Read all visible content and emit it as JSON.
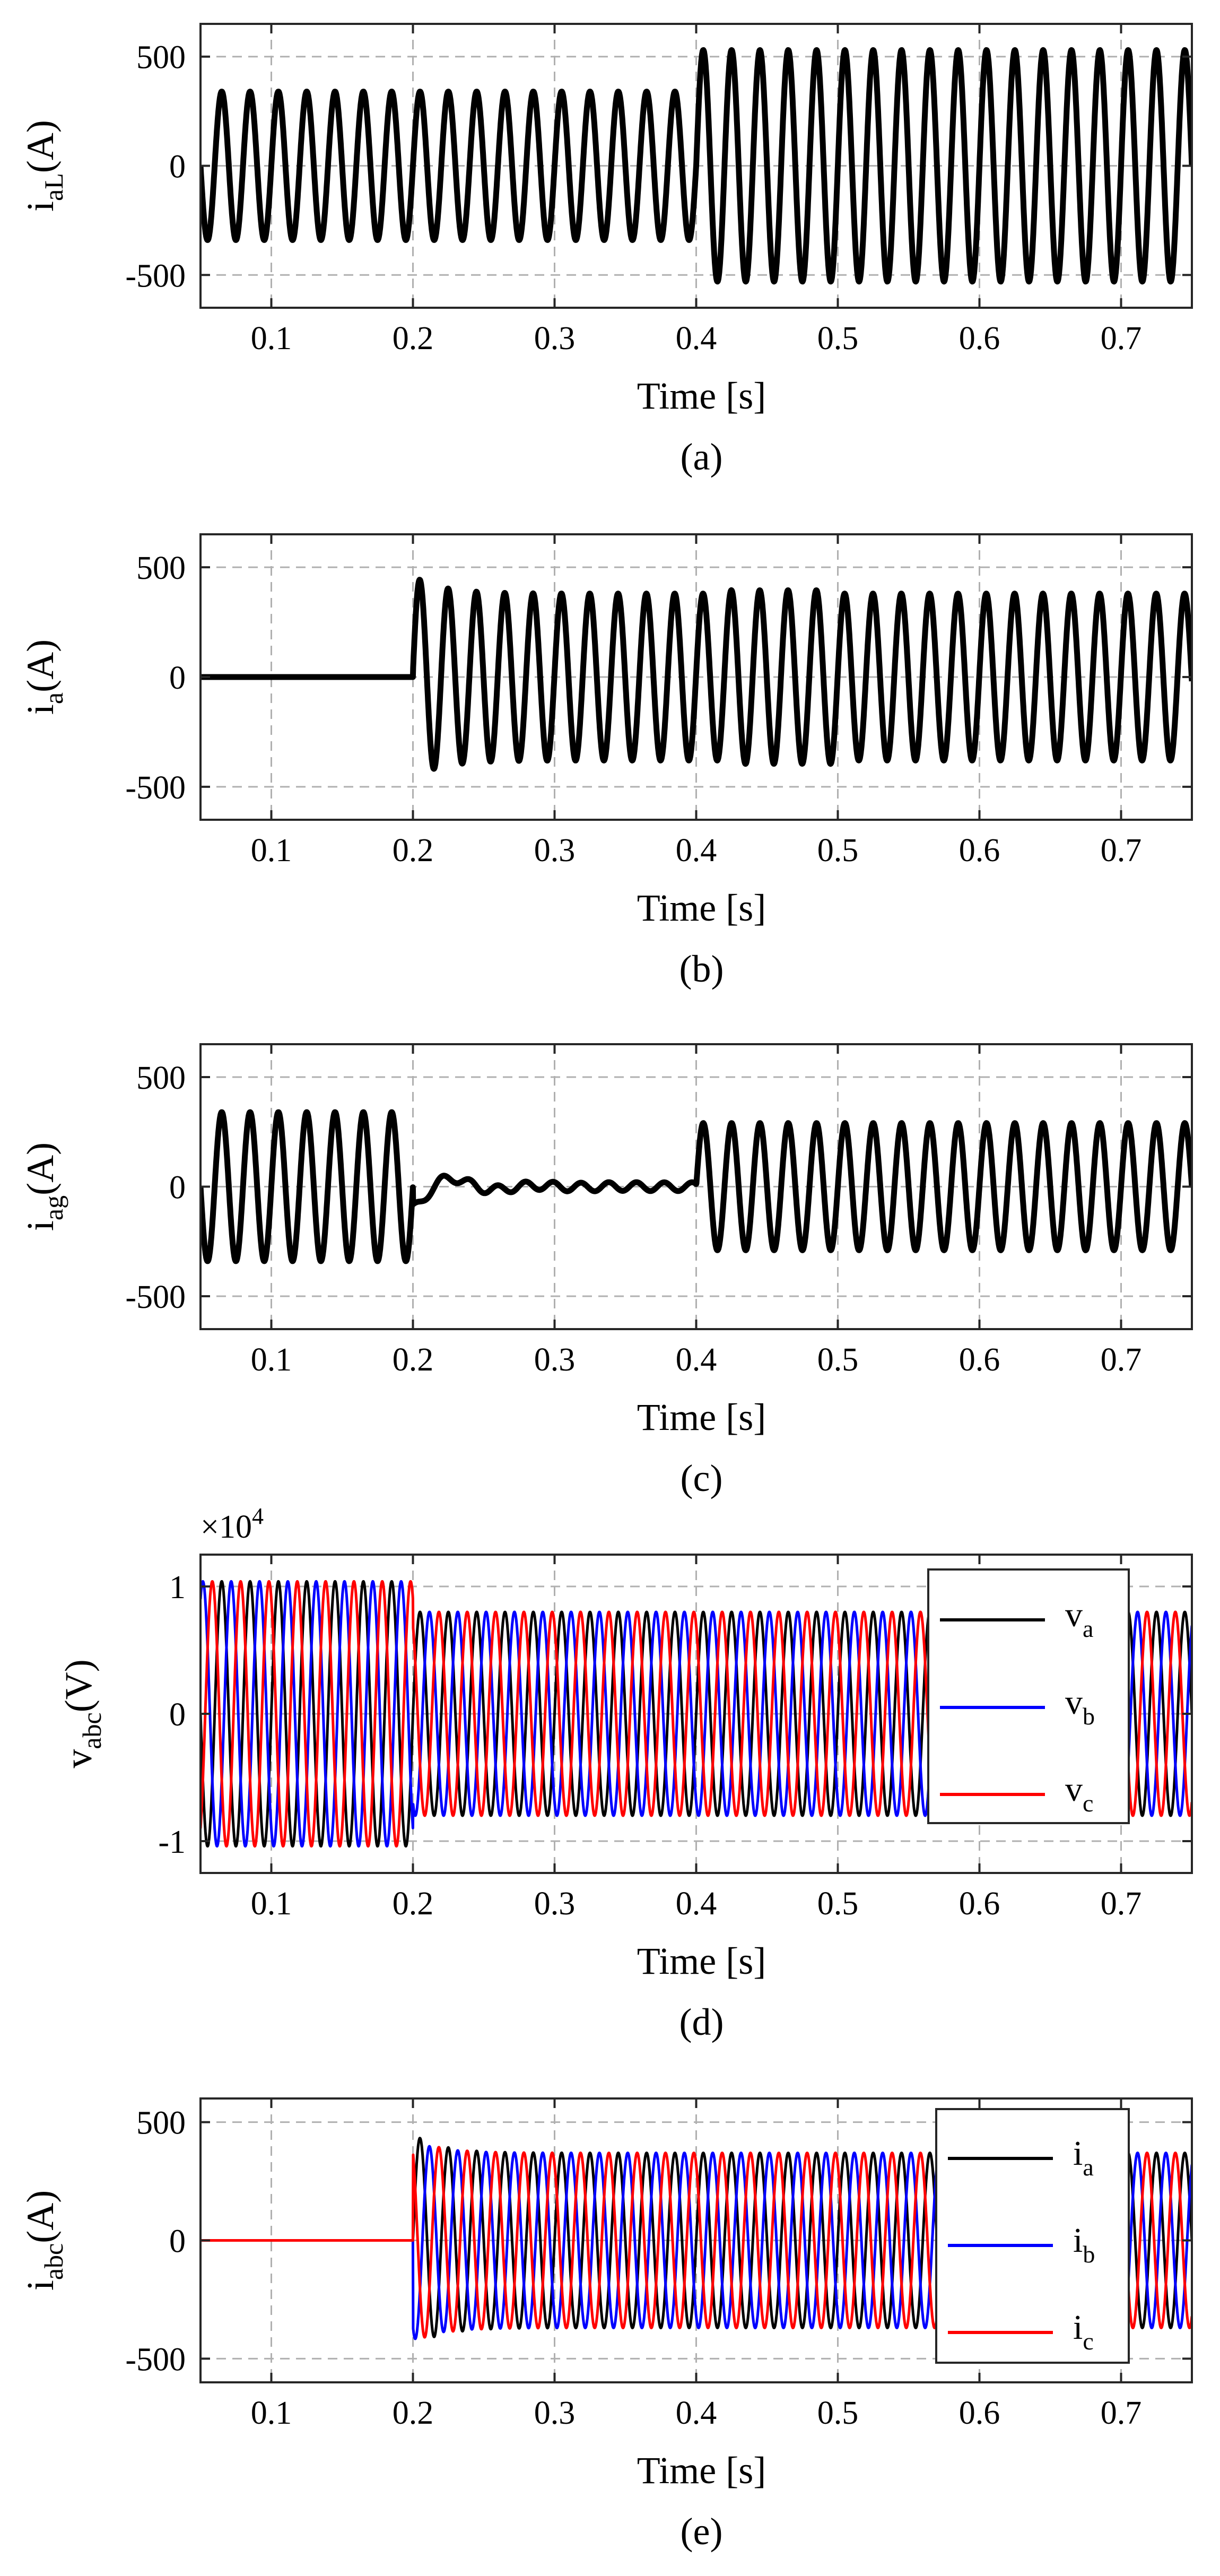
{
  "chart_data": [
    {
      "id": "a",
      "type": "line",
      "caption": "(a)",
      "xlabel": "Time [s]",
      "ylabel": {
        "main": "i",
        "sub": "aL",
        "unit": "(A)"
      },
      "xlim": [
        0.05,
        0.75
      ],
      "ylim": [
        -650,
        650
      ],
      "xticks": [
        "0.1",
        "0.2",
        "0.3",
        "0.4",
        "0.5",
        "0.6",
        "0.7"
      ],
      "xtick_values": [
        0.1,
        0.2,
        0.3,
        0.4,
        0.5,
        0.6,
        0.7
      ],
      "yticks": [
        "500",
        "0",
        "-500"
      ],
      "ytick_values": [
        500,
        0,
        -500
      ],
      "grid": true,
      "series": [
        {
          "name": "i_aL",
          "color": "#000000",
          "frequency_hz": 50,
          "segments": [
            {
              "t": [
                0.05,
                0.4
              ],
              "amplitude": 340
            },
            {
              "t": [
                0.4,
                0.75
              ],
              "amplitude": 530
            }
          ]
        }
      ]
    },
    {
      "id": "b",
      "type": "line",
      "caption": "(b)",
      "xlabel": "Time [s]",
      "ylabel": {
        "main": "i",
        "sub": "a",
        "unit": "(A)"
      },
      "xlim": [
        0.05,
        0.75
      ],
      "ylim": [
        -650,
        650
      ],
      "xticks": [
        "0.1",
        "0.2",
        "0.3",
        "0.4",
        "0.5",
        "0.6",
        "0.7"
      ],
      "xtick_values": [
        0.1,
        0.2,
        0.3,
        0.4,
        0.5,
        0.6,
        0.7
      ],
      "yticks": [
        "500",
        "0",
        "-500"
      ],
      "ytick_values": [
        500,
        0,
        -500
      ],
      "grid": true,
      "series": [
        {
          "name": "i_a",
          "color": "#000000",
          "frequency_hz": 50,
          "segments": [
            {
              "t": [
                0.05,
                0.2
              ],
              "amplitude": 0
            },
            {
              "t": [
                0.2,
                0.75
              ],
              "amplitude": 380,
              "peak_transient": 460
            }
          ]
        }
      ]
    },
    {
      "id": "c",
      "type": "line",
      "caption": "(c)",
      "xlabel": "Time [s]",
      "ylabel": {
        "main": "i",
        "sub": "ag",
        "unit": "(A)"
      },
      "xlim": [
        0.05,
        0.75
      ],
      "ylim": [
        -650,
        650
      ],
      "xticks": [
        "0.1",
        "0.2",
        "0.3",
        "0.4",
        "0.5",
        "0.6",
        "0.7"
      ],
      "xtick_values": [
        0.1,
        0.2,
        0.3,
        0.4,
        0.5,
        0.6,
        0.7
      ],
      "yticks": [
        "500",
        "0",
        "-500"
      ],
      "ytick_values": [
        500,
        0,
        -500
      ],
      "grid": true,
      "series": [
        {
          "name": "i_ag",
          "color": "#000000",
          "frequency_hz": 50,
          "segments": [
            {
              "t": [
                0.05,
                0.2
              ],
              "amplitude": 340
            },
            {
              "t": [
                0.2,
                0.4
              ],
              "amplitude": 20,
              "dip": -100
            },
            {
              "t": [
                0.4,
                0.75
              ],
              "amplitude": 290
            }
          ]
        }
      ]
    },
    {
      "id": "d",
      "type": "line",
      "caption": "(d)",
      "xlabel": "Time [s]",
      "ylabel": {
        "main": "v",
        "sub": "abc",
        "unit": "(V)"
      },
      "multiplier": {
        "base": "×10",
        "exp": "4"
      },
      "xlim": [
        0.05,
        0.75
      ],
      "ylim": [
        -1.25,
        1.25
      ],
      "xticks": [
        "0.1",
        "0.2",
        "0.3",
        "0.4",
        "0.5",
        "0.6",
        "0.7"
      ],
      "xtick_values": [
        0.1,
        0.2,
        0.3,
        0.4,
        0.5,
        0.6,
        0.7
      ],
      "yticks": [
        "1",
        "0",
        "-1"
      ],
      "ytick_values": [
        1,
        0,
        -1
      ],
      "grid": true,
      "legend": {
        "placement": "top-right"
      },
      "series": [
        {
          "name": "v_a",
          "label": "v",
          "sub": "a",
          "color": "#000000",
          "frequency_hz": 50,
          "phase_deg": 0,
          "segments": [
            {
              "t": [
                0.05,
                0.2
              ],
              "amplitude": 1.04
            },
            {
              "t": [
                0.2,
                0.75
              ],
              "amplitude": 0.8
            }
          ]
        },
        {
          "name": "v_b",
          "label": "v",
          "sub": "b",
          "color": "#0000ff",
          "frequency_hz": 50,
          "phase_deg": -120,
          "segments": [
            {
              "t": [
                0.05,
                0.2
              ],
              "amplitude": 1.04
            },
            {
              "t": [
                0.2,
                0.75
              ],
              "amplitude": 0.8
            }
          ]
        },
        {
          "name": "v_c",
          "label": "v",
          "sub": "c",
          "color": "#ff0000",
          "frequency_hz": 50,
          "phase_deg": 120,
          "segments": [
            {
              "t": [
                0.05,
                0.2
              ],
              "amplitude": 1.04
            },
            {
              "t": [
                0.2,
                0.75
              ],
              "amplitude": 0.8
            }
          ]
        }
      ]
    },
    {
      "id": "e",
      "type": "line",
      "caption": "(e)",
      "xlabel": "Time [s]",
      "ylabel": {
        "main": "i",
        "sub": "abc",
        "unit": "(A)"
      },
      "xlim": [
        0.05,
        0.75
      ],
      "ylim": [
        -600,
        600
      ],
      "xticks": [
        "0.1",
        "0.2",
        "0.3",
        "0.4",
        "0.5",
        "0.6",
        "0.7"
      ],
      "xtick_values": [
        0.1,
        0.2,
        0.3,
        0.4,
        0.5,
        0.6,
        0.7
      ],
      "yticks": [
        "500",
        "0",
        "-500"
      ],
      "ytick_values": [
        500,
        0,
        -500
      ],
      "grid": true,
      "legend": {
        "placement": "top-right"
      },
      "series": [
        {
          "name": "i_a",
          "label": "i",
          "sub": "a",
          "color": "#000000",
          "frequency_hz": 50,
          "phase_deg": 0,
          "segments": [
            {
              "t": [
                0.05,
                0.2
              ],
              "amplitude": 0
            },
            {
              "t": [
                0.2,
                0.75
              ],
              "amplitude": 370,
              "peak_transient": 450
            }
          ]
        },
        {
          "name": "i_b",
          "label": "i",
          "sub": "b",
          "color": "#0000ff",
          "frequency_hz": 50,
          "phase_deg": -120,
          "segments": [
            {
              "t": [
                0.05,
                0.2
              ],
              "amplitude": 0
            },
            {
              "t": [
                0.2,
                0.75
              ],
              "amplitude": 370,
              "peak_transient": 420
            }
          ]
        },
        {
          "name": "i_c",
          "label": "i",
          "sub": "c",
          "color": "#ff0000",
          "frequency_hz": 50,
          "phase_deg": 120,
          "segments": [
            {
              "t": [
                0.05,
                0.2
              ],
              "amplitude": 0
            },
            {
              "t": [
                0.2,
                0.75
              ],
              "amplitude": 370,
              "peak_transient": 430
            }
          ]
        }
      ]
    }
  ]
}
